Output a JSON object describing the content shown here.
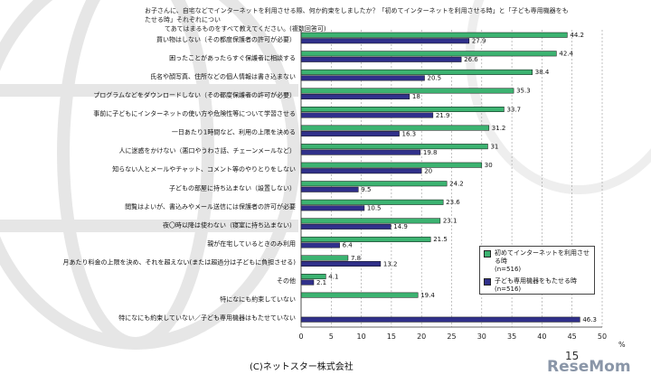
{
  "header": {
    "question_line1": "お子さんに、自宅などでインターネットを利用させる際、何か約束をしましたか？「初めてインターネットを利用させる時」と「子ども専用機器をもたせる時」それぞれについ",
    "question_line2": "てあてはまるものをすべて教えてください。(複数回答可)"
  },
  "footer": {
    "copyright": "(C)ネットスター株式会社",
    "page_number": "15",
    "brand": "ReseMom"
  },
  "colors": {
    "series1": "#3cb371",
    "series2": "#30308a",
    "grid": "#999999"
  },
  "chart_data": {
    "type": "bar",
    "orientation": "horizontal",
    "categories": [
      "買い物はしない（その都度保護者の許可が必要）",
      "困ったことがあったらすぐ保護者に相談する",
      "氏名や顔写真、住所などの個人情報は書き込まない",
      "プログラムなどをダウンロードしない（その都度保護者の許可が必要）",
      "事前に子どもにインターネットの使い方や危険性等について学習させる",
      "一日あたり1時間など、利用の上限を決める",
      "人に迷惑をかけない（悪口やうわさ話、チェーンメールなど）",
      "知らない人とメールやチャット、コメント等のやりとりをしない",
      "子どもの部屋に持ち込まない（設置しない）",
      "閲覧はよいが、書込みやメール送信には保護者の許可が必要",
      "夜〇時以降は使わない（寝室に持ち込まない）",
      "親が在宅しているときのみ利用",
      "月あたり料金の上限を決め、それを超えない(または超過分は子どもに負担させる)",
      "その他",
      "特になにも約束していない",
      "特になにも約束していない／子ども専用機器はもたせていない"
    ],
    "series": [
      {
        "name": "初めてインターネットを利用させる時",
        "n_label": "(n=516)",
        "values": [
          44.2,
          42.4,
          38.4,
          35.3,
          33.7,
          31.2,
          31,
          30,
          24.2,
          23.6,
          23.1,
          21.5,
          7.8,
          4.1,
          19.4,
          null
        ]
      },
      {
        "name": "子ども専用機器をもたせる時",
        "n_label": "(n=516)",
        "values": [
          27.9,
          26.6,
          20.5,
          18,
          21.9,
          16.3,
          19.8,
          20,
          9.5,
          10.5,
          14.9,
          6.4,
          13.2,
          2.1,
          null,
          46.3
        ]
      }
    ],
    "xlim": [
      0,
      50
    ],
    "xticks": [
      "0",
      "5",
      "10",
      "15",
      "20",
      "25",
      "30",
      "35",
      "40",
      "45",
      "50"
    ],
    "x_unit": "%",
    "grid": true,
    "legend_position": "bottom-right"
  }
}
